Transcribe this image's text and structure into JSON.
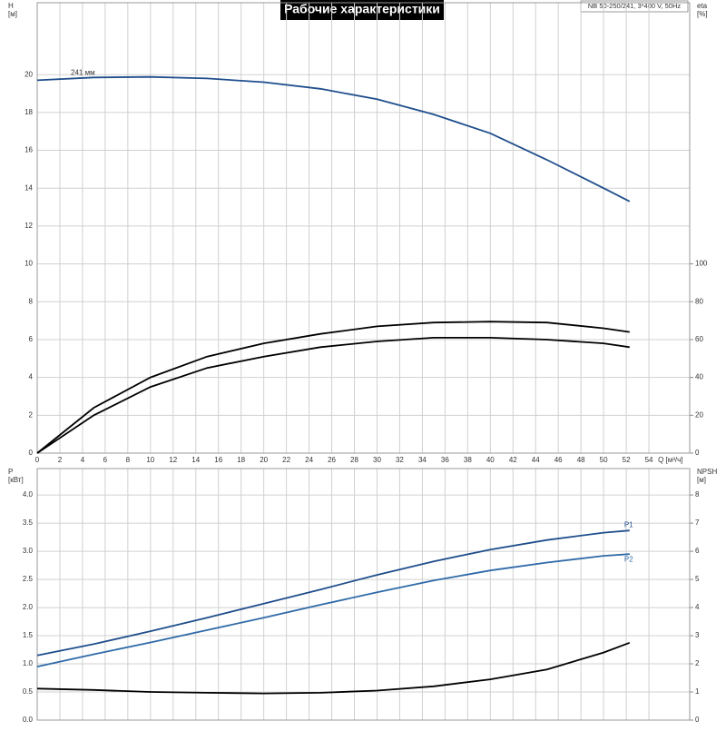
{
  "chart_data": [
    {
      "type": "line",
      "title": "Рабочие характеристики",
      "subtitle": "NB 50-250/241, 3*400 V, 50Hz",
      "annotation": "241 мм",
      "ylabel": "H",
      "yunit": "[м]",
      "y2label": "eta",
      "y2unit": "[%]",
      "xlabel": "Q [м³/ч]",
      "x": [
        0,
        5,
        10,
        15,
        20,
        25,
        30,
        35,
        40,
        45,
        50,
        52.3
      ],
      "series": [
        {
          "color": "#1f4e8c",
          "axis": "y",
          "values": [
            19.7,
            19.85,
            19.88,
            19.8,
            19.6,
            19.25,
            18.7,
            17.9,
            16.9,
            15.5,
            14.0,
            13.3
          ]
        },
        {
          "color": "#000000",
          "axis": "y2",
          "values": [
            0,
            24,
            40,
            51,
            58,
            63,
            67,
            69,
            69.5,
            69,
            66,
            64
          ]
        },
        {
          "color": "#000000",
          "axis": "y2",
          "values": [
            0,
            20,
            35,
            45,
            51,
            56,
            59,
            61,
            61,
            60,
            58,
            56
          ]
        }
      ],
      "xlim": [
        0,
        57.6
      ],
      "xticks": [
        0,
        2,
        4,
        6,
        8,
        10,
        12,
        14,
        16,
        18,
        20,
        22,
        24,
        26,
        28,
        30,
        32,
        34,
        36,
        38,
        40,
        42,
        44,
        46,
        48,
        50,
        52,
        54
      ],
      "ylim": [
        0,
        23.8
      ],
      "yticks": [
        0,
        2,
        4,
        6,
        8,
        10,
        12,
        14,
        16,
        18,
        20
      ],
      "y2lim": [
        0,
        238
      ],
      "y2ticks": [
        0,
        20,
        40,
        60,
        80,
        100
      ],
      "grid": true
    },
    {
      "type": "line",
      "ylabel": "P",
      "yunit": "[кВт]",
      "y2label": "NPSH",
      "y2unit": "[м]",
      "x": [
        0,
        5,
        10,
        15,
        20,
        25,
        30,
        35,
        40,
        45,
        50,
        52.3
      ],
      "series": [
        {
          "name": "P1",
          "color": "#1f4e8c",
          "axis": "y",
          "values": [
            1.15,
            1.35,
            1.58,
            1.82,
            2.07,
            2.32,
            2.58,
            2.82,
            3.03,
            3.2,
            3.33,
            3.37
          ]
        },
        {
          "name": "P2",
          "color": "#2f6aa8",
          "axis": "y",
          "values": [
            0.95,
            1.17,
            1.38,
            1.6,
            1.82,
            2.05,
            2.27,
            2.48,
            2.66,
            2.8,
            2.92,
            2.95
          ]
        },
        {
          "color": "#000000",
          "axis": "y2",
          "values": [
            1.12,
            1.07,
            1.0,
            0.97,
            0.95,
            0.97,
            1.05,
            1.2,
            1.45,
            1.8,
            2.4,
            2.75
          ]
        }
      ],
      "xlim": [
        0,
        57.6
      ],
      "xticks": [
        0,
        2,
        4,
        6,
        8,
        10,
        12,
        14,
        16,
        18,
        20,
        22,
        24,
        26,
        28,
        30,
        32,
        34,
        36,
        38,
        40,
        42,
        44,
        46,
        48,
        50,
        52,
        54
      ],
      "ylim": [
        0,
        4.47
      ],
      "yticks": [
        {
          "value": 0,
          "label": "0.0"
        },
        0.5,
        {
          "value": 1,
          "label": "1.0"
        },
        1.5,
        {
          "value": 2,
          "label": "2.0"
        },
        2.5,
        {
          "value": 3,
          "label": "3.0"
        },
        3.5,
        {
          "value": 4,
          "label": "4.0"
        }
      ],
      "y2lim": [
        0,
        8.94
      ],
      "y2ticks": [
        0,
        1,
        2,
        3,
        4,
        5,
        6,
        7,
        8
      ],
      "grid": true
    }
  ]
}
